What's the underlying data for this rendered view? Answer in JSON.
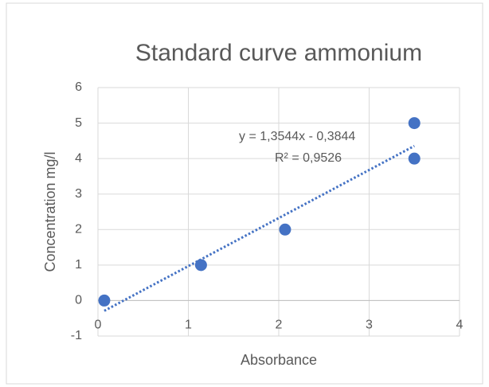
{
  "chart_data": {
    "type": "scatter",
    "title": "Standard curve ammonium",
    "xlabel": "Absorbance",
    "ylabel": "Concentration mg/l",
    "series": [
      {
        "color": "#4472c4",
        "x": [
          0.07,
          1.14,
          2.07,
          3.5,
          3.5
        ],
        "values": [
          0,
          1,
          2,
          5,
          4
        ]
      }
    ],
    "xlim": [
      0,
      4
    ],
    "xticks": [
      0,
      1,
      2,
      3,
      4
    ],
    "ylim": [
      -1,
      6
    ],
    "yticks": [
      -1,
      0,
      1,
      2,
      3,
      4,
      5,
      6
    ],
    "grid": true,
    "trendline": {
      "slope": 1.3544,
      "intercept": -0.3844,
      "x_range": [
        0.07,
        3.5
      ],
      "color": "#4472c4",
      "equation": "y = 1,3544x - 0,3844",
      "r2": "R² = 0,9526"
    }
  }
}
